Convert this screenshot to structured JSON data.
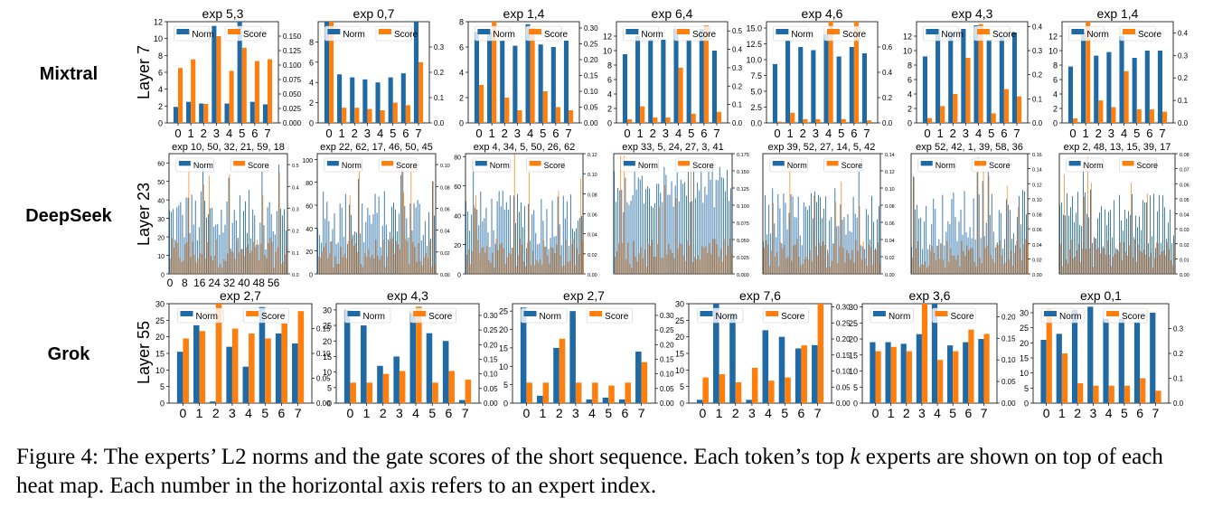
{
  "colors": {
    "norm": "#1f6aa5",
    "score": "#ff7f0e"
  },
  "rows": [
    {
      "model": "Mixtral",
      "layer": "Layer 7"
    },
    {
      "model": "DeepSeek",
      "layer": "Layer 23"
    },
    {
      "model": "Grok",
      "layer": "Layer 55"
    }
  ],
  "legend": {
    "norm": "Norm",
    "score": "Score"
  },
  "caption": {
    "part1": "Figure 4: The experts’ L2 norms and the gate scores of the short sequence. Each token’s top ",
    "k": "k",
    "part2": " experts are shown on top of each heat map. Each number in the horizontal axis refers to an expert index."
  },
  "chart_data": [
    {
      "type": "bar",
      "row": "Mixtral",
      "title": "exp 5,3",
      "categories": [
        "0",
        "1",
        "2",
        "3",
        "4",
        "5",
        "6",
        "7"
      ],
      "series": [
        {
          "name": "Norm",
          "values": [
            1.9,
            2.5,
            2.3,
            11.5,
            2.3,
            12,
            2.5,
            2.2
          ]
        },
        {
          "name": "Score",
          "values": [
            0.095,
            0.11,
            0.033,
            0.15,
            0.09,
            0.13,
            0.107,
            0.11
          ]
        }
      ],
      "ylim_left": [
        0,
        12
      ],
      "yticks_left": [
        "0",
        "2",
        "4",
        "6",
        "8",
        "10",
        "12"
      ],
      "ylim_right": [
        0,
        0.175
      ],
      "yticks_right": [
        "0.000",
        "0.025",
        "0.050",
        "0.075",
        "0.100",
        "0.125",
        "0.150"
      ]
    },
    {
      "type": "bar",
      "row": "Mixtral",
      "title": "exp 0,7",
      "categories": [
        "0",
        "1",
        "2",
        "3",
        "4",
        "5",
        "6",
        "7"
      ],
      "series": [
        {
          "name": "Norm",
          "values": [
            10,
            4.8,
            4.5,
            4.3,
            4.0,
            4.5,
            4.9,
            10
          ]
        },
        {
          "name": "Score",
          "values": [
            0.4,
            0.06,
            0.06,
            0.055,
            0.05,
            0.08,
            0.07,
            0.24
          ]
        }
      ],
      "ylim_left": [
        0,
        10
      ],
      "yticks_left": [
        "0",
        "2",
        "4",
        "6",
        "8"
      ],
      "ylim_right": [
        0,
        0.4
      ],
      "yticks_right": [
        "0.0",
        "0.1",
        "0.2",
        "0.3"
      ]
    },
    {
      "type": "bar",
      "row": "Mixtral",
      "title": "exp 1,4",
      "categories": [
        "0",
        "1",
        "2",
        "3",
        "4",
        "5",
        "6",
        "7"
      ],
      "series": [
        {
          "name": "Norm",
          "values": [
            7.2,
            7.2,
            6.5,
            6.1,
            7.8,
            6.2,
            6.0,
            6.5
          ]
        },
        {
          "name": "Score",
          "values": [
            0.12,
            0.32,
            0.08,
            0.04,
            0.3,
            0.1,
            0.05,
            0.04
          ]
        }
      ],
      "ylim_left": [
        0,
        8
      ],
      "yticks_left": [
        "0",
        "2",
        "4",
        "6",
        "8"
      ],
      "ylim_right": [
        0,
        0.32
      ],
      "yticks_right": [
        "0.00",
        "0.05",
        "0.10",
        "0.15",
        "0.20",
        "0.25",
        "0.30"
      ]
    },
    {
      "type": "bar",
      "row": "Mixtral",
      "title": "exp 6,4",
      "categories": [
        "0",
        "1",
        "2",
        "3",
        "4",
        "5",
        "6",
        "7"
      ],
      "series": [
        {
          "name": "Norm",
          "values": [
            9.5,
            12,
            11.5,
            11.5,
            13,
            11.5,
            13,
            10
          ]
        },
        {
          "name": "Score",
          "values": [
            0.02,
            0.09,
            0.03,
            0.03,
            0.3,
            0.05,
            0.53,
            0.06
          ]
        }
      ],
      "ylim_left": [
        0,
        14
      ],
      "yticks_left": [
        "0",
        "2",
        "4",
        "6",
        "8",
        "10",
        "12"
      ],
      "ylim_right": [
        0,
        0.55
      ],
      "yticks_right": [
        "0.0",
        "0.1",
        "0.2",
        "0.3",
        "0.4",
        "0.5"
      ]
    },
    {
      "type": "bar",
      "row": "Mixtral",
      "title": "exp 4,6",
      "categories": [
        "0",
        "1",
        "2",
        "3",
        "4",
        "5",
        "6",
        "7"
      ],
      "series": [
        {
          "name": "Norm",
          "values": [
            9.3,
            13,
            12,
            11.5,
            14,
            10.5,
            12,
            11
          ]
        },
        {
          "name": "Score",
          "values": [
            0.01,
            0.08,
            0.03,
            0.03,
            0.8,
            0.03,
            0.8,
            0.02
          ]
        }
      ],
      "ylim_left": [
        0,
        16
      ],
      "yticks_left": [
        "0.0",
        "2.5",
        "5.0",
        "7.5",
        "10.0",
        "12.5",
        "15.0"
      ],
      "ylim_right": [
        0,
        0.8
      ],
      "yticks_right": [
        "0.0",
        "0.2",
        "0.4",
        "0.6"
      ]
    },
    {
      "type": "bar",
      "row": "Mixtral",
      "title": "exp 4,3",
      "categories": [
        "0",
        "1",
        "2",
        "3",
        "4",
        "5",
        "6",
        "7"
      ],
      "series": [
        {
          "name": "Norm",
          "values": [
            9.2,
            13,
            12.5,
            13,
            13.5,
            11.5,
            12,
            12.5
          ]
        },
        {
          "name": "Score",
          "values": [
            0.02,
            0.07,
            0.12,
            0.27,
            0.41,
            0.04,
            0.14,
            0.11
          ]
        }
      ],
      "ylim_left": [
        0,
        14
      ],
      "yticks_left": [
        "0",
        "2",
        "4",
        "6",
        "8",
        "10",
        "12"
      ],
      "ylim_right": [
        0,
        0.42
      ],
      "yticks_right": [
        "0.0",
        "0.1",
        "0.2",
        "0.3",
        "0.4"
      ]
    },
    {
      "type": "bar",
      "row": "Mixtral",
      "title": "exp 1,4",
      "categories": [
        "0",
        "1",
        "2",
        "3",
        "4",
        "5",
        "6",
        "7"
      ],
      "series": [
        {
          "name": "Norm",
          "values": [
            7.8,
            12.5,
            9.3,
            9.8,
            12,
            9,
            10,
            10
          ]
        },
        {
          "name": "Score",
          "values": [
            0.02,
            0.45,
            0.1,
            0.07,
            0.23,
            0.06,
            0.06,
            0.05
          ]
        }
      ],
      "ylim_left": [
        0,
        14
      ],
      "yticks_left": [
        "0",
        "2",
        "4",
        "6",
        "8",
        "10",
        "12"
      ],
      "ylim_right": [
        0,
        0.45
      ],
      "yticks_right": [
        "0.0",
        "0.1",
        "0.2",
        "0.3",
        "0.4"
      ]
    },
    {
      "type": "bar",
      "row": "DeepSeek",
      "title": "exp 10, 50, 32, 21, 59, 18",
      "n": 64,
      "peaks": [
        10,
        50,
        32,
        21,
        59,
        18
      ],
      "xticks": [
        "0",
        "8",
        "16",
        "24",
        "32",
        "40",
        "48",
        "56"
      ],
      "ylim_left": [
        0,
        65
      ],
      "yticks_left": [
        "0",
        "10",
        "20",
        "30",
        "40",
        "50",
        "60"
      ],
      "ylim_right": [
        0,
        0.55
      ],
      "yticks_right": [
        "0.0",
        "0.1",
        "0.2",
        "0.3",
        "0.4",
        "0.5"
      ]
    },
    {
      "type": "bar",
      "row": "DeepSeek",
      "title": "exp 22, 62, 17, 46, 50, 45",
      "n": 64,
      "peaks": [
        22,
        62,
        17,
        46,
        50,
        45
      ],
      "ylim_left": [
        0,
        105
      ],
      "yticks_left": [
        "0",
        "20",
        "40",
        "60",
        "80",
        "100"
      ],
      "ylim_right": [
        0,
        0.11
      ],
      "yticks_right": [
        "0.00",
        "0.02",
        "0.04",
        "0.06",
        "0.08",
        "0.10"
      ]
    },
    {
      "type": "bar",
      "row": "DeepSeek",
      "title": "exp 4, 34, 5, 50, 26, 62",
      "n": 64,
      "peaks": [
        4,
        34,
        5,
        50,
        26,
        62
      ],
      "ylim_left": [
        0,
        82
      ],
      "yticks_left": [
        "0",
        "20",
        "40",
        "60",
        "80"
      ],
      "ylim_right": [
        0,
        0.12
      ],
      "yticks_right": [
        "0.00",
        "0.02",
        "0.04",
        "0.06",
        "0.08",
        "0.10",
        "0.12"
      ]
    },
    {
      "type": "bar",
      "row": "DeepSeek",
      "title": "exp 33, 5, 24, 27, 3, 41",
      "n": 64,
      "peaks": [
        33,
        5,
        24,
        27,
        3,
        41
      ],
      "ylim_left": [
        0,
        80
      ],
      "yticks_left": [],
      "ylim_right": [
        0,
        0.175
      ],
      "yticks_right": [
        "0.000",
        "0.025",
        "0.050",
        "0.075",
        "0.100",
        "0.125",
        "0.150",
        "0.175"
      ]
    },
    {
      "type": "bar",
      "row": "DeepSeek",
      "title": "exp 39, 52, 27, 14, 5, 42",
      "n": 64,
      "peaks": [
        39,
        52,
        27,
        14,
        5,
        42
      ],
      "ylim_left": [
        0,
        80
      ],
      "yticks_left": [],
      "ylim_right": [
        0,
        0.14
      ],
      "yticks_right": [
        "0.00",
        "0.02",
        "0.04",
        "0.06",
        "0.08",
        "0.10",
        "0.12",
        "0.14"
      ]
    },
    {
      "type": "bar",
      "row": "DeepSeek",
      "title": "exp 52, 42, 1, 39, 58, 36",
      "n": 64,
      "peaks": [
        52,
        42,
        1,
        39,
        58,
        36
      ],
      "ylim_left": [
        0,
        80
      ],
      "yticks_left": [],
      "ylim_right": [
        0,
        0.16
      ],
      "yticks_right": [
        "0.00",
        "0.02",
        "0.04",
        "0.06",
        "0.08",
        "0.10",
        "0.12",
        "0.14",
        "0.16"
      ]
    },
    {
      "type": "bar",
      "row": "DeepSeek",
      "title": "exp 2, 48, 13, 15, 39, 17",
      "n": 64,
      "peaks": [
        2,
        48,
        13,
        15,
        39,
        17
      ],
      "ylim_left": [
        0,
        80
      ],
      "yticks_left": [],
      "ylim_right": [
        0,
        0.08
      ],
      "yticks_right": [
        "0.00",
        "0.01",
        "0.02",
        "0.03",
        "0.04",
        "0.05",
        "0.06",
        "0.07",
        "0.08"
      ]
    },
    {
      "type": "bar",
      "row": "Grok",
      "title": "exp 2,7",
      "categories": [
        "0",
        "1",
        "2",
        "3",
        "4",
        "5",
        "6",
        "7"
      ],
      "series": [
        {
          "name": "Norm",
          "values": [
            15.5,
            23.5,
            0.5,
            17,
            11,
            29,
            21,
            18
          ]
        },
        {
          "name": "Score",
          "values": [
            0.13,
            0.145,
            0.23,
            0.15,
            0.14,
            0.13,
            0.16,
            0.185
          ]
        }
      ],
      "ylim_left": [
        0,
        30
      ],
      "yticks_left": [
        "0",
        "5",
        "10",
        "15",
        "20",
        "25",
        "30"
      ],
      "ylim_right": [
        0,
        0.2
      ],
      "yticks_right": [
        "0.00",
        "0.05",
        "0.10",
        "0.15"
      ]
    },
    {
      "type": "bar",
      "row": "Grok",
      "title": "exp 4,3",
      "categories": [
        "0",
        "1",
        "2",
        "3",
        "4",
        "5",
        "6",
        "7"
      ],
      "series": [
        {
          "name": "Norm",
          "values": [
            30,
            25,
            12,
            15,
            29,
            22.5,
            20,
            1
          ]
        },
        {
          "name": "Score",
          "values": [
            0.07,
            0.07,
            0.1,
            0.11,
            0.33,
            0.07,
            0.11,
            0.08
          ]
        }
      ],
      "ylim_left": [
        0,
        32
      ],
      "yticks_left": [
        "0",
        "5",
        "10",
        "15",
        "20",
        "25",
        "30"
      ],
      "ylim_right": [
        0,
        0.34
      ],
      "yticks_right": [
        "0.00",
        "0.05",
        "0.10",
        "0.15",
        "0.20",
        "0.25",
        "0.30"
      ]
    },
    {
      "type": "bar",
      "row": "Grok",
      "title": "exp 2,7",
      "categories": [
        "0",
        "1",
        "2",
        "3",
        "4",
        "5",
        "6",
        "7"
      ],
      "series": [
        {
          "name": "Norm",
          "values": [
            26,
            2,
            15,
            25,
            1,
            1.5,
            1,
            14
          ]
        },
        {
          "name": "Score",
          "values": [
            0.07,
            0.07,
            0.22,
            0.07,
            0.07,
            0.06,
            0.07,
            0.14
          ]
        }
      ],
      "ylim_left": [
        0,
        27
      ],
      "yticks_left": [
        "0",
        "5",
        "10",
        "15",
        "20",
        "25"
      ],
      "ylim_right": [
        0,
        0.34
      ],
      "yticks_right": [
        "0.00",
        "0.05",
        "0.10",
        "0.15",
        "0.20",
        "0.25",
        "0.30"
      ]
    },
    {
      "type": "bar",
      "row": "Grok",
      "title": "exp 7,6",
      "categories": [
        "0",
        "1",
        "2",
        "3",
        "4",
        "5",
        "6",
        "7"
      ],
      "series": [
        {
          "name": "Norm",
          "values": [
            1,
            30,
            27,
            1,
            22,
            20,
            16.5,
            17.5
          ]
        },
        {
          "name": "Score",
          "values": [
            0.08,
            0.09,
            0.065,
            0.11,
            0.07,
            0.08,
            0.18,
            0.31
          ]
        }
      ],
      "ylim_left": [
        0,
        30
      ],
      "yticks_left": [
        "0",
        "5",
        "10",
        "15",
        "20",
        "25",
        "30"
      ],
      "ylim_right": [
        0,
        0.31
      ],
      "yticks_right": [
        "0.00",
        "0.05",
        "0.10",
        "0.15",
        "0.20",
        "0.25",
        "0.30"
      ]
    },
    {
      "type": "bar",
      "row": "Grok",
      "title": "exp 3,6",
      "categories": [
        "0",
        "1",
        "2",
        "3",
        "4",
        "5",
        "6",
        "7"
      ],
      "series": [
        {
          "name": "Norm",
          "values": [
            19,
            19,
            18.5,
            21.5,
            31,
            18,
            19,
            20
          ]
        },
        {
          "name": "Score",
          "values": [
            0.12,
            0.13,
            0.12,
            0.23,
            0.1,
            0.12,
            0.17,
            0.16
          ]
        }
      ],
      "ylim_left": [
        0,
        31
      ],
      "yticks_left": [
        "0",
        "5",
        "10",
        "15",
        "20",
        "25",
        "30"
      ],
      "ylim_right": [
        0,
        0.23
      ],
      "yticks_right": [
        "0.00",
        "0.05",
        "0.10",
        "0.15",
        "0.20"
      ]
    },
    {
      "type": "bar",
      "row": "Grok",
      "title": "exp 0,1",
      "categories": [
        "0",
        "1",
        "2",
        "3",
        "4",
        "5",
        "6",
        "7"
      ],
      "series": [
        {
          "name": "Norm",
          "values": [
            21,
            23,
            31,
            32,
            28,
            28,
            27,
            30
          ]
        },
        {
          "name": "Score",
          "values": [
            0.38,
            0.2,
            0.08,
            0.07,
            0.07,
            0.07,
            0.1,
            0.05
          ]
        }
      ],
      "ylim_left": [
        0,
        33
      ],
      "yticks_left": [
        "0",
        "5",
        "10",
        "15",
        "20",
        "25",
        "30"
      ],
      "ylim_right": [
        0,
        0.4
      ],
      "yticks_right": [
        "0.0",
        "0.1",
        "0.2",
        "0.3"
      ]
    }
  ]
}
